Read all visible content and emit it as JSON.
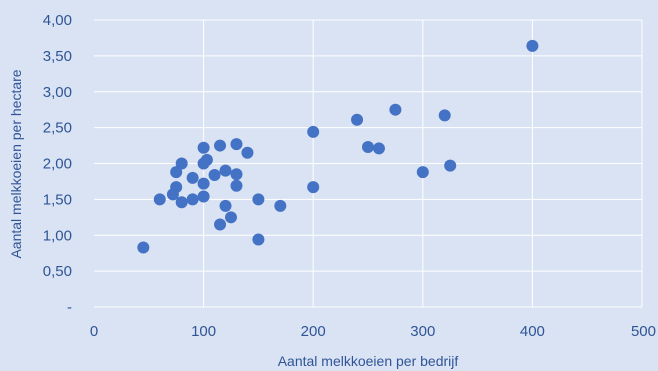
{
  "chart_data": {
    "type": "scatter",
    "title": "",
    "xlabel": "Aantal melkkoeien per bedrijf",
    "ylabel": "Aantal melkkoeien per hectare",
    "xlim": [
      0,
      500
    ],
    "ylim": [
      0,
      4
    ],
    "x_ticks": [
      0,
      100,
      200,
      300,
      400,
      500
    ],
    "x_tick_labels": [
      "0",
      "100",
      "200",
      "300",
      "400",
      "500"
    ],
    "y_ticks": [
      0,
      0.5,
      1,
      1.5,
      2,
      2.5,
      3,
      3.5,
      4
    ],
    "y_tick_labels": [
      "-",
      "0,50",
      "1,00",
      "1,50",
      "2,00",
      "2,50",
      "3,00",
      "3,50",
      "4,00"
    ],
    "grid": true,
    "point_color": "#4472c4",
    "background_color": "#dae3f3",
    "gridline_color": "#ffffff",
    "text_color": "#2f5597",
    "points": [
      {
        "x": 45,
        "y": 0.83
      },
      {
        "x": 60,
        "y": 1.5
      },
      {
        "x": 72,
        "y": 1.57
      },
      {
        "x": 75,
        "y": 1.67
      },
      {
        "x": 75,
        "y": 1.88
      },
      {
        "x": 80,
        "y": 2.0
      },
      {
        "x": 80,
        "y": 1.46
      },
      {
        "x": 90,
        "y": 1.5
      },
      {
        "x": 90,
        "y": 1.8
      },
      {
        "x": 100,
        "y": 2.22
      },
      {
        "x": 100,
        "y": 2.0
      },
      {
        "x": 100,
        "y": 1.72
      },
      {
        "x": 100,
        "y": 1.54
      },
      {
        "x": 103,
        "y": 2.05
      },
      {
        "x": 110,
        "y": 1.84
      },
      {
        "x": 115,
        "y": 2.25
      },
      {
        "x": 115,
        "y": 1.15
      },
      {
        "x": 120,
        "y": 1.9
      },
      {
        "x": 120,
        "y": 1.41
      },
      {
        "x": 125,
        "y": 1.25
      },
      {
        "x": 130,
        "y": 2.27
      },
      {
        "x": 130,
        "y": 1.85
      },
      {
        "x": 130,
        "y": 1.69
      },
      {
        "x": 140,
        "y": 2.15
      },
      {
        "x": 150,
        "y": 1.5
      },
      {
        "x": 150,
        "y": 0.94
      },
      {
        "x": 170,
        "y": 1.41
      },
      {
        "x": 200,
        "y": 2.44
      },
      {
        "x": 200,
        "y": 1.67
      },
      {
        "x": 240,
        "y": 2.61
      },
      {
        "x": 250,
        "y": 2.23
      },
      {
        "x": 260,
        "y": 2.21
      },
      {
        "x": 275,
        "y": 2.75
      },
      {
        "x": 300,
        "y": 1.88
      },
      {
        "x": 320,
        "y": 2.67
      },
      {
        "x": 325,
        "y": 1.97
      },
      {
        "x": 400,
        "y": 3.64
      }
    ]
  }
}
